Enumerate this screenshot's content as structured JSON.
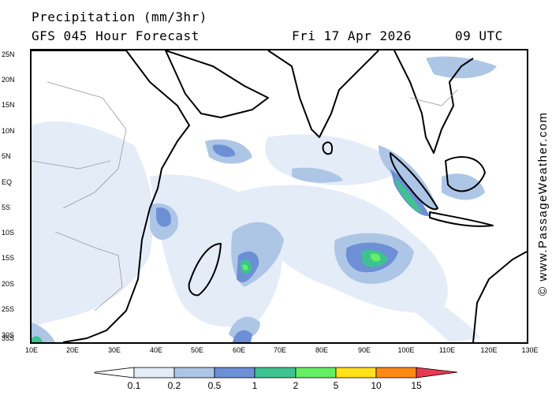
{
  "header": {
    "title": "Precipitation (mm/3hr)",
    "subtitle": "GFS 045 Hour Forecast",
    "date": "Fri 17 Apr 2026",
    "time": "09 UTC"
  },
  "credit": "© www.PassageWeather.com",
  "map": {
    "lat_labels": [
      "25N",
      "20N",
      "15N",
      "10N",
      "5N",
      "EQ",
      "5S",
      "10S",
      "15S",
      "20S",
      "25S",
      "30S",
      "35S"
    ],
    "lon_labels": [
      "10E",
      "20E",
      "30E",
      "40E",
      "50E",
      "60E",
      "70E",
      "80E",
      "90E",
      "100E",
      "110E",
      "120E",
      "130E"
    ],
    "lat_range": [
      -36,
      26
    ],
    "lon_range": [
      10,
      130
    ]
  },
  "legend": {
    "levels": [
      "0.1",
      "0.2",
      "0.5",
      "1",
      "2",
      "5",
      "10",
      "15"
    ],
    "colors": [
      "#ffffff",
      "#e4ecf8",
      "#adc6e6",
      "#6d8fd6",
      "#3ec390",
      "#66ee66",
      "#ffe11c",
      "#ff8a17",
      "#e83a52"
    ]
  }
}
